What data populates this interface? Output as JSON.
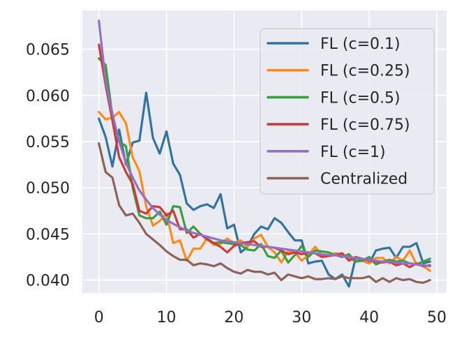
{
  "chart_data": {
    "type": "line",
    "title": "",
    "xlabel": "",
    "ylabel": "",
    "xlim": [
      -2.45,
      51.45
    ],
    "ylim": [
      0.0386,
      0.0692
    ],
    "xticks": [
      0,
      10,
      20,
      30,
      40,
      50
    ],
    "yticks": [
      0.04,
      0.045,
      0.05,
      0.055,
      0.06,
      0.065
    ],
    "ytick_labels": [
      "0.040",
      "0.045",
      "0.050",
      "0.055",
      "0.060",
      "0.065"
    ],
    "grid": true,
    "legend_position": "top-right",
    "x": [
      0,
      1,
      2,
      3,
      4,
      5,
      6,
      7,
      8,
      9,
      10,
      11,
      12,
      13,
      14,
      15,
      16,
      17,
      18,
      19,
      20,
      21,
      22,
      23,
      24,
      25,
      26,
      27,
      28,
      29,
      30,
      31,
      32,
      33,
      34,
      35,
      36,
      37,
      38,
      39,
      40,
      41,
      42,
      43,
      44,
      45,
      46,
      47,
      48,
      49
    ],
    "series": [
      {
        "name": "FL (c=0.1)",
        "color": "#3274a1",
        "values": [
          0.0575,
          0.0555,
          0.0523,
          0.0563,
          0.0525,
          0.0549,
          0.0551,
          0.0603,
          0.0554,
          0.0537,
          0.0561,
          0.0526,
          0.0514,
          0.0483,
          0.0476,
          0.048,
          0.0482,
          0.0478,
          0.0493,
          0.0456,
          0.046,
          0.043,
          0.0436,
          0.045,
          0.0458,
          0.0455,
          0.0467,
          0.0462,
          0.0452,
          0.0443,
          0.0443,
          0.0418,
          0.042,
          0.0421,
          0.0406,
          0.0401,
          0.0406,
          0.0393,
          0.0424,
          0.0421,
          0.0418,
          0.0432,
          0.0434,
          0.0435,
          0.0424,
          0.0436,
          0.0436,
          0.044,
          0.0418,
          0.042
        ]
      },
      {
        "name": "FL (c=0.25)",
        "color": "#ff8c1a",
        "values": [
          0.0582,
          0.0574,
          0.0576,
          0.0582,
          0.057,
          0.0533,
          0.0518,
          0.048,
          0.0459,
          0.0464,
          0.0472,
          0.044,
          0.0443,
          0.0421,
          0.0434,
          0.0434,
          0.0445,
          0.0438,
          0.0439,
          0.0445,
          0.044,
          0.0443,
          0.0436,
          0.0445,
          0.0449,
          0.0436,
          0.043,
          0.0419,
          0.0431,
          0.043,
          0.0421,
          0.0427,
          0.0436,
          0.0427,
          0.0427,
          0.0429,
          0.0428,
          0.0424,
          0.042,
          0.0421,
          0.0418,
          0.0424,
          0.0424,
          0.0418,
          0.0425,
          0.0421,
          0.0432,
          0.0417,
          0.0415,
          0.041
        ]
      },
      {
        "name": "FL (c=0.5)",
        "color": "#3a9e3a",
        "values": [
          0.064,
          0.0633,
          0.0578,
          0.055,
          0.0545,
          0.05,
          0.047,
          0.0467,
          0.0467,
          0.0474,
          0.046,
          0.048,
          0.0479,
          0.0451,
          0.0458,
          0.045,
          0.0445,
          0.044,
          0.0441,
          0.044,
          0.0439,
          0.0438,
          0.0433,
          0.0432,
          0.0439,
          0.0426,
          0.0424,
          0.0432,
          0.0419,
          0.0427,
          0.0437,
          0.0425,
          0.0432,
          0.0431,
          0.043,
          0.0427,
          0.0425,
          0.0428,
          0.042,
          0.0421,
          0.0425,
          0.0417,
          0.042,
          0.0422,
          0.042,
          0.0421,
          0.0418,
          0.0417,
          0.042,
          0.0423
        ]
      },
      {
        "name": "FL (c=0.75)",
        "color": "#cc3a3a",
        "values": [
          0.0655,
          0.0611,
          0.0573,
          0.0533,
          0.0517,
          0.0504,
          0.0475,
          0.0472,
          0.048,
          0.0479,
          0.047,
          0.0475,
          0.0455,
          0.0455,
          0.0446,
          0.045,
          0.0444,
          0.044,
          0.0436,
          0.043,
          0.0437,
          0.044,
          0.0441,
          0.0442,
          0.0436,
          0.0436,
          0.0435,
          0.0432,
          0.0428,
          0.043,
          0.0428,
          0.043,
          0.0429,
          0.0425,
          0.0426,
          0.0427,
          0.0429,
          0.0421,
          0.0425,
          0.0423,
          0.0421,
          0.042,
          0.0419,
          0.042,
          0.0416,
          0.0418,
          0.0414,
          0.0418,
          0.0415,
          0.0416
        ]
      },
      {
        "name": "FL (c=1)",
        "color": "#9370c4",
        "values": [
          0.0681,
          0.0615,
          0.058,
          0.055,
          0.0527,
          0.0511,
          0.0497,
          0.0487,
          0.0478,
          0.0471,
          0.0465,
          0.0461,
          0.0457,
          0.0454,
          0.0451,
          0.0449,
          0.0447,
          0.0445,
          0.0443,
          0.0442,
          0.0441,
          0.044,
          0.0439,
          0.0438,
          0.0437,
          0.0436,
          0.0435,
          0.0434,
          0.0433,
          0.0432,
          0.0431,
          0.043,
          0.0429,
          0.0428,
          0.0427,
          0.0427,
          0.0426,
          0.0425,
          0.0424,
          0.0423,
          0.0422,
          0.0421,
          0.042,
          0.042,
          0.0419,
          0.0418,
          0.0418,
          0.0417,
          0.0416,
          0.0415
        ]
      },
      {
        "name": "Centralized",
        "color": "#8c6358",
        "values": [
          0.0548,
          0.0517,
          0.0511,
          0.0481,
          0.047,
          0.0472,
          0.0462,
          0.045,
          0.0444,
          0.0438,
          0.0431,
          0.0426,
          0.0422,
          0.0422,
          0.0416,
          0.0418,
          0.0417,
          0.0415,
          0.0418,
          0.0413,
          0.0409,
          0.0407,
          0.0411,
          0.0409,
          0.0409,
          0.0406,
          0.0408,
          0.04,
          0.0406,
          0.0404,
          0.0402,
          0.0404,
          0.0401,
          0.0401,
          0.0402,
          0.0401,
          0.0404,
          0.0402,
          0.0402,
          0.0402,
          0.0404,
          0.0398,
          0.0402,
          0.0398,
          0.0402,
          0.04,
          0.0401,
          0.0398,
          0.0397,
          0.04
        ]
      }
    ]
  }
}
